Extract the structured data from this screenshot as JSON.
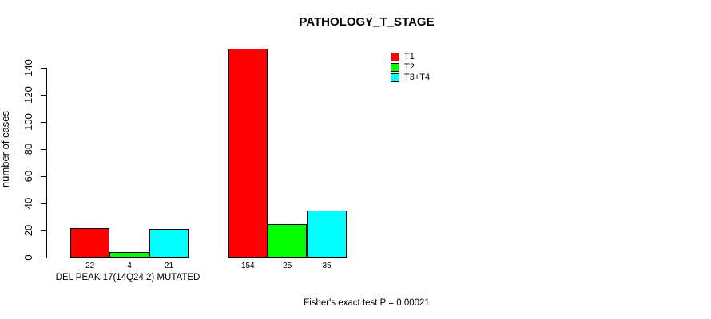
{
  "chart_data": {
    "type": "bar",
    "title": "PATHOLOGY_T_STAGE",
    "ylabel": "number of cases",
    "xlabel": "",
    "ylim": [
      0,
      140
    ],
    "yticks": [
      0,
      20,
      40,
      60,
      80,
      100,
      120,
      140
    ],
    "grid": false,
    "categories": [
      "DEL PEAK 17(14Q24.2) MUTATED",
      ""
    ],
    "series": [
      {
        "name": "T1",
        "color": "#FF0000",
        "values": [
          22,
          154
        ]
      },
      {
        "name": "T2",
        "color": "#00FF00",
        "values": [
          4,
          25
        ]
      },
      {
        "name": "T3+T4",
        "color": "#00FFFF",
        "values": [
          21,
          35
        ]
      }
    ],
    "bar_value_labels": [
      [
        "22",
        "4",
        "21"
      ],
      [
        "154",
        "25",
        "35"
      ]
    ],
    "legend": {
      "position": "top-right",
      "entries": [
        {
          "label": "T1",
          "color": "#FF0000"
        },
        {
          "label": "T2",
          "color": "#00FF00"
        },
        {
          "label": "T3+T4",
          "color": "#00FFFF"
        }
      ]
    },
    "annotation": "Fisher's exact test P = 0.00021"
  },
  "colors": {
    "background": "#FFFFFF",
    "axis": "#000000",
    "text": "#000000"
  }
}
